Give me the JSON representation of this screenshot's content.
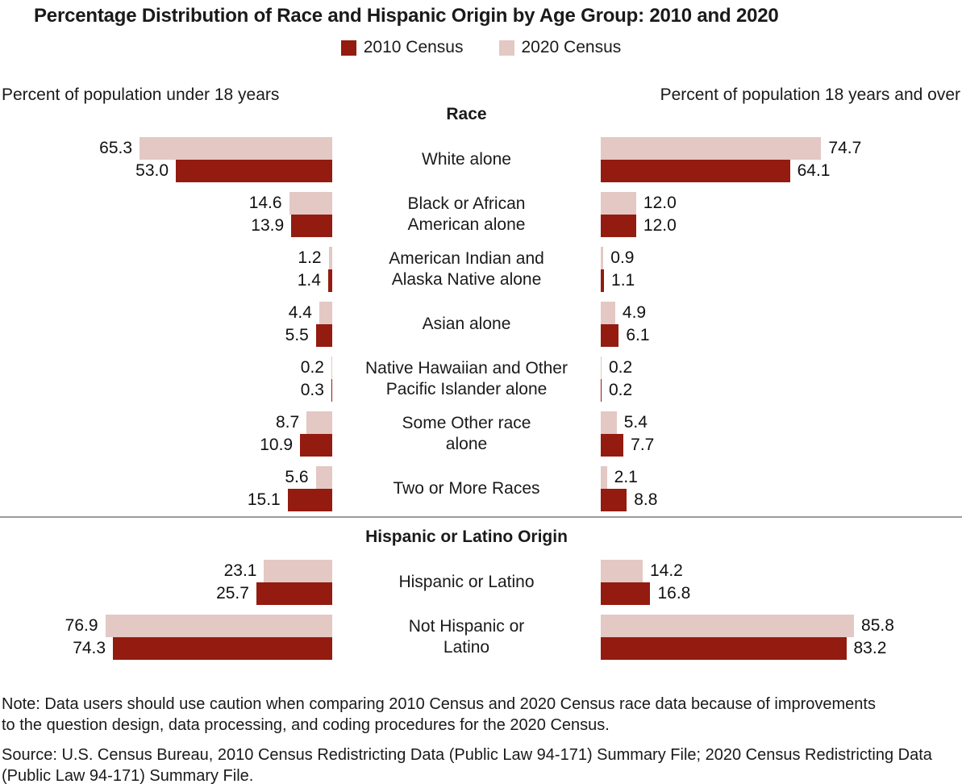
{
  "title": "Percentage Distribution of Race and Hispanic Origin by Age Group: 2010 and 2020",
  "legend": {
    "items": [
      {
        "label": "2010 Census",
        "color": "#931B10"
      },
      {
        "label": "2020 Census",
        "color": "#E3C8C3"
      }
    ]
  },
  "notes": {
    "note": "Note: Data users should use caution when comparing 2010 Census and 2020 Census race data because of improvements to the question design, data processing, and coding procedures for the 2020 Census.",
    "source": "Source: U.S. Census Bureau, 2010 Census Redistricting Data (Public Law 94-171) Summary File; 2020 Census Redistricting Data (Public Law 94-171) Summary File."
  },
  "chart_data": {
    "type": "bar",
    "layout": "paired-horizontal-butterfly",
    "colors": {
      "y2010": "#931B10",
      "y2020": "#E3C8C3"
    },
    "series_names": [
      "2010 Census",
      "2020 Census"
    ],
    "panels": {
      "left_title": "Percent of population under 18 years",
      "right_title": "Percent of population 18 years and over"
    },
    "xlim": [
      0,
      100
    ],
    "sections": [
      {
        "header": "Race",
        "rows": [
          {
            "label": "White alone",
            "under18": {
              "y2020": "65.3",
              "y2010": "53.0"
            },
            "over18": {
              "y2020": "74.7",
              "y2010": "64.1"
            }
          },
          {
            "label": "Black or African\nAmerican alone",
            "under18": {
              "y2020": "14.6",
              "y2010": "13.9"
            },
            "over18": {
              "y2020": "12.0",
              "y2010": "12.0"
            }
          },
          {
            "label": "American Indian and\nAlaska Native alone",
            "under18": {
              "y2020": "1.2",
              "y2010": "1.4"
            },
            "over18": {
              "y2020": "0.9",
              "y2010": "1.1"
            }
          },
          {
            "label": "Asian alone",
            "under18": {
              "y2020": "4.4",
              "y2010": "5.5"
            },
            "over18": {
              "y2020": "4.9",
              "y2010": "6.1"
            }
          },
          {
            "label": "Native Hawaiian and Other\nPacific Islander alone",
            "under18": {
              "y2020": "0.2",
              "y2010": "0.3"
            },
            "over18": {
              "y2020": "0.2",
              "y2010": "0.2"
            }
          },
          {
            "label": "Some Other race\nalone",
            "under18": {
              "y2020": "8.7",
              "y2010": "10.9"
            },
            "over18": {
              "y2020": "5.4",
              "y2010": "7.7"
            }
          },
          {
            "label": "Two or More Races",
            "under18": {
              "y2020": "5.6",
              "y2010": "15.1"
            },
            "over18": {
              "y2020": "2.1",
              "y2010": "8.8"
            }
          }
        ]
      },
      {
        "header": "Hispanic or Latino Origin",
        "rows": [
          {
            "label": "Hispanic or Latino",
            "under18": {
              "y2020": "23.1",
              "y2010": "25.7"
            },
            "over18": {
              "y2020": "14.2",
              "y2010": "16.8"
            }
          },
          {
            "label": "Not Hispanic or\nLatino",
            "under18": {
              "y2020": "76.9",
              "y2010": "74.3"
            },
            "over18": {
              "y2020": "85.8",
              "y2010": "83.2"
            }
          }
        ]
      }
    ]
  }
}
